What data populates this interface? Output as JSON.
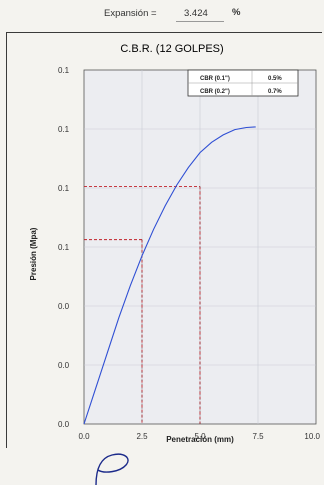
{
  "header": {
    "expansion_label": "Expansión =",
    "expansion_value": "3.424",
    "expansion_unit": "%"
  },
  "chart_data": {
    "type": "line",
    "title": "C.B.R. (12 GOLPES)",
    "xlabel": "Penetración (mm)",
    "ylabel": "Presión (Mpa)",
    "xlim": [
      0,
      10
    ],
    "x_ticks": [
      "0.0",
      "2.5",
      "5.0",
      "7.5",
      "10.0"
    ],
    "y_ticks": [
      "0.0",
      "0.0",
      "0.0",
      "0.1",
      "0.1",
      "0.1",
      "0.1"
    ],
    "grid": true,
    "legend": {
      "placement": "top-right",
      "rows": [
        {
          "label": "CBR (0.1\")",
          "value": "0.5%"
        },
        {
          "label": "CBR (0.2\")",
          "value": "0.7%"
        }
      ]
    },
    "series": [
      {
        "x": [
          0,
          0.5,
          1,
          1.5,
          2,
          2.5,
          3,
          3.5,
          4,
          4.5,
          5,
          5.5,
          6,
          6.5,
          7,
          7.4
        ],
        "y": [
          0.0,
          0.012,
          0.024,
          0.036,
          0.047,
          0.057,
          0.066,
          0.074,
          0.081,
          0.087,
          0.092,
          0.0955,
          0.098,
          0.0998,
          0.1005,
          0.1007
        ]
      }
    ],
    "reference_points": [
      {
        "x": 2.5,
        "y": 0.0625
      },
      {
        "x": 5.0,
        "y": 0.0805
      }
    ],
    "colors": {
      "line": "#2f4fd4",
      "reference": "#c0202a",
      "grid": "#c9cbd6"
    }
  }
}
